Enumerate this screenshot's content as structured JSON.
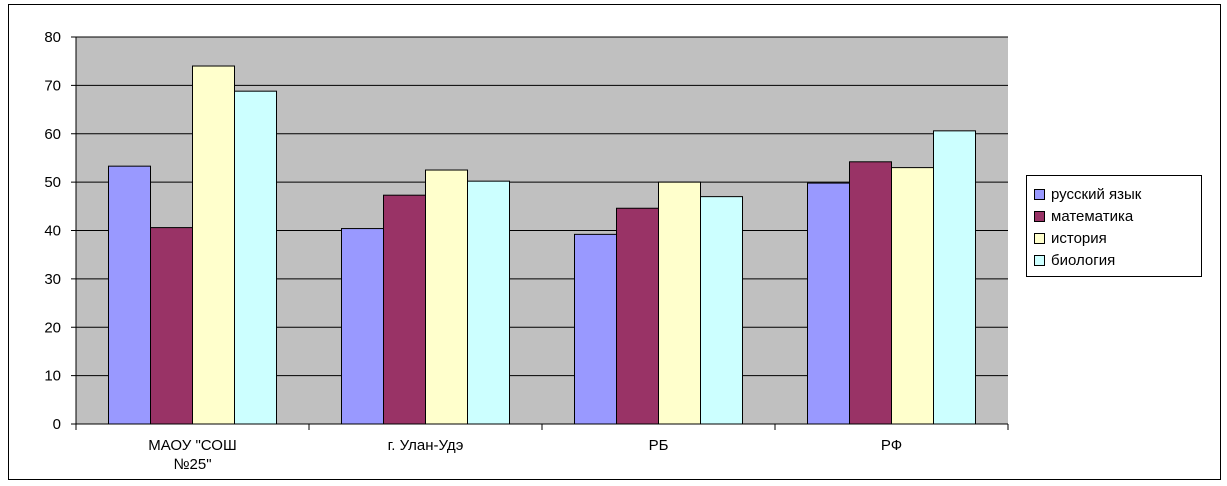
{
  "chart_data": {
    "type": "bar",
    "categories": [
      [
        "МАОУ \"СОШ",
        "№25\""
      ],
      [
        "г. Улан-Удэ"
      ],
      [
        "РБ"
      ],
      [
        "РФ"
      ]
    ],
    "series": [
      {
        "name": "русский язык",
        "color": "#9999ff",
        "values": [
          53.3,
          40.4,
          39.2,
          49.8
        ]
      },
      {
        "name": "математика",
        "color": "#993366",
        "values": [
          40.6,
          47.3,
          44.6,
          54.2
        ]
      },
      {
        "name": "история",
        "color": "#ffffcc",
        "values": [
          74.0,
          52.5,
          50.0,
          53.0
        ]
      },
      {
        "name": "биология",
        "color": "#ccffff",
        "values": [
          68.8,
          50.2,
          47.0,
          60.6
        ]
      }
    ],
    "ylim": [
      0,
      80
    ],
    "yticks": [
      "0",
      "10",
      "20",
      "30",
      "40",
      "50",
      "60",
      "70",
      "80"
    ],
    "grid": true,
    "plot_background": "#c0c0c0",
    "legend_position": "right",
    "title": "",
    "xlabel": "",
    "ylabel": ""
  }
}
